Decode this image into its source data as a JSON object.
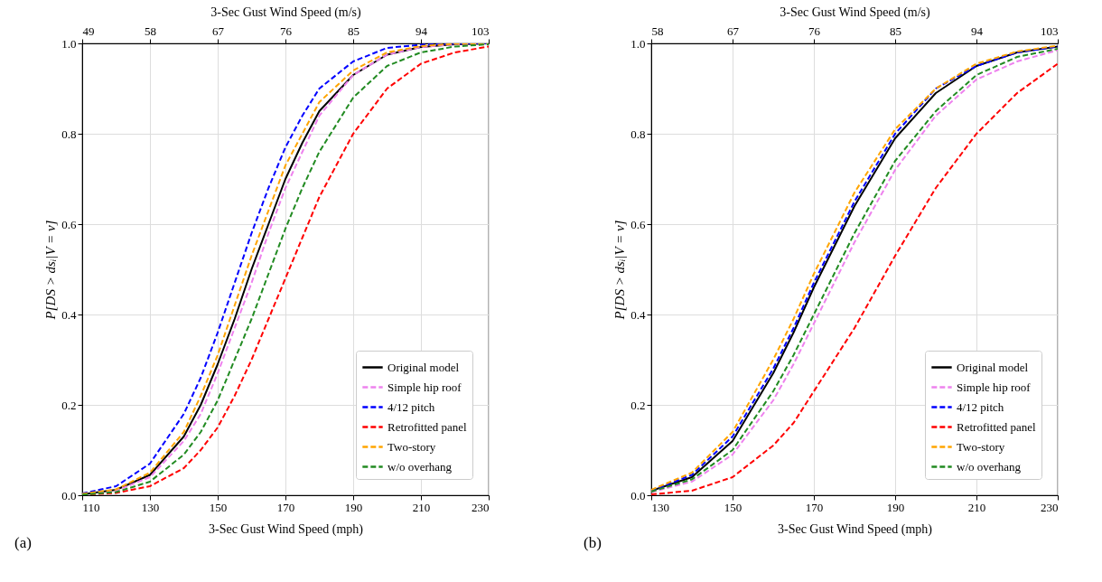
{
  "chart_data": [
    {
      "type": "line",
      "xlabel": "3-Sec Gust Wind Speed (mph)",
      "x2label": "3-Sec Gust Wind Speed (m/s)",
      "ylabel": "P[DS > dsᵢ|V = v]",
      "x": [
        110,
        120,
        130,
        140,
        145,
        150,
        155,
        160,
        165,
        170,
        175,
        180,
        190,
        200,
        210,
        220,
        230
      ],
      "xlim": [
        110,
        230
      ],
      "xticks": [
        110,
        130,
        150,
        170,
        190,
        210,
        230
      ],
      "x2lim": [
        49,
        103
      ],
      "x2ticks": [
        49,
        58,
        67,
        76,
        85,
        94,
        103
      ],
      "ylim": [
        0,
        1
      ],
      "yticks": [
        {
          "value": 0,
          "label": "0.0"
        },
        {
          "value": 0.2,
          "label": "0.2"
        },
        {
          "value": 0.4,
          "label": "0.4"
        },
        {
          "value": 0.6,
          "label": "0.6"
        },
        {
          "value": 0.8,
          "label": "0.8"
        },
        {
          "value": 1,
          "label": "1.0"
        }
      ],
      "grid": true,
      "legend": "bottom right",
      "annotations": [
        "(a)"
      ],
      "series": [
        {
          "name": "Original model",
          "color": "#000000",
          "line_style": "solid",
          "values": [
            0.002,
            0.012,
            0.045,
            0.13,
            0.2,
            0.29,
            0.39,
            0.5,
            0.6,
            0.7,
            0.78,
            0.85,
            0.93,
            0.975,
            0.992,
            0.998,
            1.0
          ]
        },
        {
          "name": "Simple hip roof",
          "color": "#ee82ee",
          "line_style": "dashed",
          "values": [
            0.002,
            0.01,
            0.04,
            0.12,
            0.18,
            0.27,
            0.37,
            0.47,
            0.58,
            0.68,
            0.76,
            0.84,
            0.93,
            0.975,
            0.992,
            0.998,
            1.0
          ]
        },
        {
          "name": "4/12 pitch",
          "color": "#0000ff",
          "line_style": "dashed",
          "values": [
            0.004,
            0.02,
            0.07,
            0.18,
            0.26,
            0.36,
            0.47,
            0.58,
            0.68,
            0.77,
            0.84,
            0.9,
            0.96,
            0.99,
            0.997,
            0.999,
            1.0
          ]
        },
        {
          "name": "Retrofitted panel",
          "color": "#ff0000",
          "line_style": "dashed",
          "values": [
            0.001,
            0.005,
            0.02,
            0.06,
            0.1,
            0.15,
            0.22,
            0.3,
            0.39,
            0.48,
            0.57,
            0.66,
            0.8,
            0.9,
            0.955,
            0.98,
            0.993
          ]
        },
        {
          "name": "Two-story",
          "color": "#ffa500",
          "line_style": "dashed",
          "values": [
            0.003,
            0.013,
            0.05,
            0.14,
            0.22,
            0.31,
            0.42,
            0.53,
            0.63,
            0.73,
            0.8,
            0.87,
            0.94,
            0.98,
            0.994,
            0.999,
            1.0
          ]
        },
        {
          "name": "w/o overhang",
          "color": "#228b22",
          "line_style": "dashed",
          "values": [
            0.001,
            0.007,
            0.03,
            0.09,
            0.14,
            0.21,
            0.3,
            0.39,
            0.49,
            0.59,
            0.68,
            0.76,
            0.88,
            0.95,
            0.98,
            0.993,
            0.998
          ]
        }
      ]
    },
    {
      "type": "line",
      "xlabel": "3-Sec Gust Wind Speed (mph)",
      "x2label": "3-Sec Gust Wind Speed (m/s)",
      "ylabel": "P[DS > dsᵢ|V = v]",
      "x": [
        130,
        140,
        150,
        160,
        165,
        170,
        175,
        180,
        190,
        200,
        210,
        220,
        230
      ],
      "xlim": [
        130,
        230
      ],
      "xticks": [
        130,
        150,
        170,
        190,
        210,
        230
      ],
      "x2lim": [
        58,
        103
      ],
      "x2ticks": [
        58,
        67,
        76,
        85,
        94,
        103
      ],
      "ylim": [
        0,
        1
      ],
      "yticks": [
        {
          "value": 0,
          "label": "0.0"
        },
        {
          "value": 0.2,
          "label": "0.2"
        },
        {
          "value": 0.4,
          "label": "0.4"
        },
        {
          "value": 0.6,
          "label": "0.6"
        },
        {
          "value": 0.8,
          "label": "0.8"
        },
        {
          "value": 1,
          "label": "1.0"
        }
      ],
      "grid": true,
      "legend": "bottom right",
      "annotations": [
        "(b)"
      ],
      "series": [
        {
          "name": "Original model",
          "color": "#000000",
          "line_style": "solid",
          "values": [
            0.01,
            0.04,
            0.12,
            0.27,
            0.36,
            0.46,
            0.55,
            0.64,
            0.79,
            0.89,
            0.95,
            0.98,
            0.993
          ]
        },
        {
          "name": "Simple hip roof",
          "color": "#ee82ee",
          "line_style": "dashed",
          "values": [
            0.007,
            0.03,
            0.09,
            0.21,
            0.29,
            0.38,
            0.47,
            0.56,
            0.72,
            0.84,
            0.92,
            0.96,
            0.985
          ]
        },
        {
          "name": "4/12 pitch",
          "color": "#0000ff",
          "line_style": "dashed",
          "values": [
            0.01,
            0.045,
            0.13,
            0.28,
            0.37,
            0.47,
            0.56,
            0.65,
            0.8,
            0.9,
            0.95,
            0.98,
            0.993
          ]
        },
        {
          "name": "Retrofitted panel",
          "color": "#ff0000",
          "line_style": "dashed",
          "values": [
            0.002,
            0.01,
            0.04,
            0.11,
            0.16,
            0.23,
            0.3,
            0.37,
            0.53,
            0.68,
            0.8,
            0.89,
            0.955
          ]
        },
        {
          "name": "Two-story",
          "color": "#ffa500",
          "line_style": "dashed",
          "values": [
            0.012,
            0.05,
            0.14,
            0.3,
            0.39,
            0.49,
            0.58,
            0.67,
            0.81,
            0.9,
            0.955,
            0.982,
            0.995
          ]
        },
        {
          "name": "w/o overhang",
          "color": "#228b22",
          "line_style": "dashed",
          "values": [
            0.008,
            0.035,
            0.1,
            0.23,
            0.31,
            0.4,
            0.49,
            0.58,
            0.74,
            0.85,
            0.93,
            0.97,
            0.988
          ]
        }
      ]
    }
  ]
}
